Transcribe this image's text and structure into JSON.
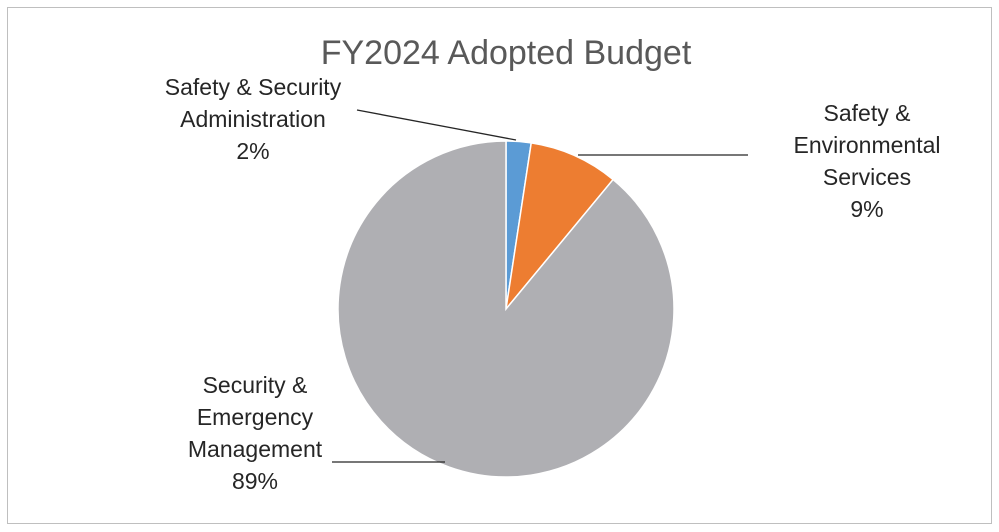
{
  "chart_data": {
    "type": "pie",
    "title": "FY2024 Adopted Budget",
    "start_angle_deg": 0,
    "direction": "clockwise",
    "slices": [
      {
        "label_lines": [
          "Safety & Security",
          "Administration"
        ],
        "percent_label": "2%",
        "value": 2.4,
        "color": "#5b9bd5"
      },
      {
        "label_lines": [
          "Safety &",
          "Environmental",
          "Services"
        ],
        "percent_label": "9%",
        "value": 8.6,
        "color": "#ed7d31"
      },
      {
        "label_lines": [
          "Security &",
          "Emergency",
          "Management"
        ],
        "percent_label": "89%",
        "value": 89.0,
        "color": "#afafb3"
      }
    ]
  }
}
